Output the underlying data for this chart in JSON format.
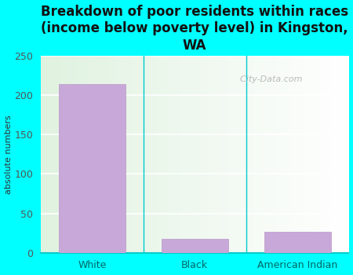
{
  "title": "Breakdown of poor residents within races\n(income below poverty level) in Kingston,\nWA",
  "categories": [
    "White",
    "Black",
    "American Indian"
  ],
  "values": [
    214,
    18,
    27
  ],
  "bar_color": "#c8a8d8",
  "bar_edge_color": "#b898c8",
  "ylabel": "absolute numbers",
  "ylim": [
    0,
    250
  ],
  "yticks": [
    0,
    50,
    100,
    150,
    200,
    250
  ],
  "background_outer": "#00ffff",
  "background_plot": "#e8f5e8",
  "grid_color": "#ffffff",
  "title_fontsize": 12,
  "axis_label_fontsize": 8,
  "tick_fontsize": 9,
  "xtick_color": "#006666",
  "ytick_color": "#555555",
  "watermark_text": "  City-Data.com"
}
